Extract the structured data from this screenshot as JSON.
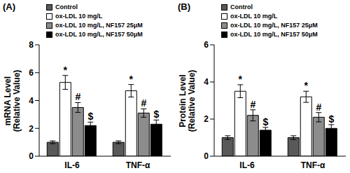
{
  "chart_data": [
    {
      "type": "bar",
      "title": "(A)",
      "ylabel": "mRNA Level\n(Relative Value)",
      "categories": [
        "IL-6",
        "TNF-α"
      ],
      "ylim": [
        0,
        8
      ],
      "yticks": [
        0,
        2,
        4,
        6,
        8
      ],
      "grid": false,
      "series": [
        {
          "name": "Control",
          "color": "#595959",
          "values": [
            1.0,
            1.0
          ],
          "errors": [
            0.1,
            0.1
          ],
          "annotations": [
            null,
            null
          ]
        },
        {
          "name": "ox-LDL 10 mg/L",
          "color": "#ffffff",
          "values": [
            5.3,
            4.7
          ],
          "errors": [
            0.5,
            0.45
          ],
          "annotations": [
            "*",
            "*"
          ]
        },
        {
          "name": "ox-LDL 10 mg/L, NF157 25μM",
          "color": "#8c8c8c",
          "values": [
            3.5,
            3.1
          ],
          "errors": [
            0.35,
            0.3
          ],
          "annotations": [
            "#",
            "#"
          ]
        },
        {
          "name": "ox-LDL 10 mg/L, NF157 50μM",
          "color": "#000000",
          "values": [
            2.2,
            2.3
          ],
          "errors": [
            0.25,
            0.3
          ],
          "annotations": [
            "$",
            "$"
          ]
        }
      ]
    },
    {
      "type": "bar",
      "title": "(B)",
      "ylabel": "Protein Level\n(Relative Value)",
      "categories": [
        "IL-6",
        "TNF-α"
      ],
      "ylim": [
        0,
        6
      ],
      "yticks": [
        0,
        2,
        4,
        6
      ],
      "grid": false,
      "series": [
        {
          "name": "Control",
          "color": "#595959",
          "values": [
            1.0,
            1.0
          ],
          "errors": [
            0.1,
            0.1
          ],
          "annotations": [
            null,
            null
          ]
        },
        {
          "name": "ox-LDL 10 mg/L",
          "color": "#ffffff",
          "values": [
            3.5,
            3.2
          ],
          "errors": [
            0.35,
            0.3
          ],
          "annotations": [
            "*",
            "*"
          ]
        },
        {
          "name": "ox-LDL 10 mg/L, NF157 25μM",
          "color": "#8c8c8c",
          "values": [
            2.2,
            2.1
          ],
          "errors": [
            0.3,
            0.25
          ],
          "annotations": [
            "#",
            "#"
          ]
        },
        {
          "name": "ox-LDL 10 mg/L, NF157 50μM",
          "color": "#000000",
          "values": [
            1.4,
            1.5
          ],
          "errors": [
            0.15,
            0.2
          ],
          "annotations": [
            "$",
            "$"
          ]
        }
      ]
    }
  ]
}
